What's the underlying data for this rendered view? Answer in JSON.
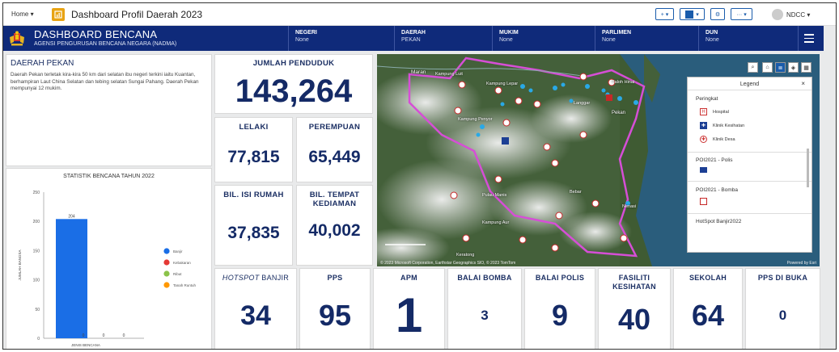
{
  "topbar": {
    "home_label": "Home",
    "app_title": "Dashboard Profil Daerah 2023",
    "user_label": "NDCC"
  },
  "header": {
    "title": "DASHBOARD BENCANA",
    "subtitle": "AGENSI PENGURUSAN BENCANA NEGARA (NADMA)",
    "filters": [
      {
        "label": "NEGERI",
        "value": "None"
      },
      {
        "label": "DAERAH",
        "value": "PEKAN"
      },
      {
        "label": "MUKIM",
        "value": "None"
      },
      {
        "label": "PARLIMEN",
        "value": "None"
      },
      {
        "label": "DUN",
        "value": "None"
      }
    ]
  },
  "district": {
    "title": "DAERAH PEKAN",
    "description": "Daerah Pekan terletak kira-kira 50 km dari selatan ibu negeri terkini iaitu Kuantan, berhampiran Laut China Selatan dan tebing selatan Sungai Pahang. Daerah Pekan mempunyai 12 mukim."
  },
  "population": {
    "total_label": "JUMLAH PENDUDUK",
    "total_value": "143,264",
    "male_label": "LELAKI",
    "male_value": "77,815",
    "female_label": "PEREMPUAN",
    "female_value": "65,449",
    "households_label": "BIL. ISI RUMAH",
    "households_value": "37,835",
    "residences_label": "BIL. TEMPAT KEDIAMAN",
    "residences_value": "40,002"
  },
  "chart_data": {
    "type": "bar",
    "title": "STATISTIK BENCANA TAHUN 2022",
    "xlabel": "JENIS BENCANA",
    "ylabel": "JUMLAH BANGSA",
    "ylim": [
      0,
      250
    ],
    "yticks": [
      0,
      50,
      100,
      150,
      200,
      250
    ],
    "categories": [
      "Banjir",
      "Kebakaran",
      "Ribut",
      "Tanah Runtuh"
    ],
    "values": [
      204,
      0,
      0,
      0
    ],
    "data_labels": [
      "204",
      "0",
      "0",
      "0"
    ],
    "colors": [
      "#1a6ee6",
      "#e53935",
      "#8bc34a",
      "#ff9800"
    ],
    "legend": [
      "Banjir",
      "Kebakaran",
      "Ribut",
      "Tanah Runtuh"
    ],
    "legend_position": "right",
    "grid": false
  },
  "map": {
    "place_labels": [
      "Maran",
      "Kampung Luit",
      "Kampung Lepar",
      "Kampung Penyor",
      "Langgar",
      "Pekan",
      "Paloh Hinai",
      "Bebar",
      "Kampung Aur",
      "Keratong",
      "Nenasi",
      "Pulau Manis"
    ],
    "attribution": "© 2023 Microsoft Corporation, Earthstar Geographics SIO, © 2023 TomTom",
    "esri_credit": "Powered by Esri",
    "legend_title": "Legend",
    "legend_sections": [
      {
        "title": "Peringkat",
        "items": [
          "Hospital",
          "Klinik Kesihatan",
          "Klinik Desa"
        ]
      },
      {
        "title": "POI2021 - Polis",
        "items": []
      },
      {
        "title": "POI2021 - Bomba",
        "items": []
      },
      {
        "title": "HotSpot Banjir2022",
        "items": []
      }
    ]
  },
  "stats": [
    {
      "label_em": "HOTSPOT",
      "label": " BANJIR",
      "value": "34"
    },
    {
      "label_em": "",
      "label": "PPS",
      "value": "95"
    },
    {
      "label_em": "",
      "label": "APM",
      "value": "1"
    },
    {
      "label_em": "",
      "label": "BALAI BOMBA",
      "value": "3"
    },
    {
      "label_em": "",
      "label": "BALAI POLIS",
      "value": "9"
    },
    {
      "label_em": "",
      "label": "FASILITI KESIHATAN",
      "value": "40"
    },
    {
      "label_em": "",
      "label": "SEKOLAH",
      "value": "64"
    },
    {
      "label_em": "",
      "label": "PPS DI BUKA",
      "value": "0"
    }
  ]
}
